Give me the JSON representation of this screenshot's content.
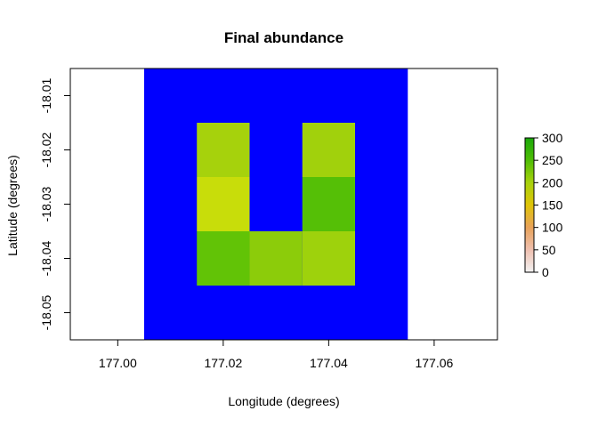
{
  "chart_data": {
    "type": "heatmap",
    "title": "Final abundance",
    "xlabel": "Longitude (degrees)",
    "ylabel": "Latitude (degrees)",
    "xlim": [
      176.991,
      177.072
    ],
    "ylim": [
      -18.055,
      -18.005
    ],
    "xticks": [
      177.0,
      177.02,
      177.04,
      177.06
    ],
    "xtick_labels": [
      "177.00",
      "177.02",
      "177.04",
      "177.06"
    ],
    "yticks": [
      -18.01,
      -18.02,
      -18.03,
      -18.04,
      -18.05
    ],
    "ytick_labels": [
      "-18.01",
      "-18.02",
      "-18.03",
      "-18.04",
      "-18.05"
    ],
    "background_region": {
      "x": [
        177.005,
        177.055
      ],
      "y": [
        -18.055,
        -18.005
      ],
      "color": "#0000ff"
    },
    "cell_size": 0.01,
    "cells": [
      {
        "x": 177.02,
        "y": -18.02,
        "value": 205,
        "color": "#a6d20c"
      },
      {
        "x": 177.04,
        "y": -18.02,
        "value": 200,
        "color": "#a1d10c"
      },
      {
        "x": 177.02,
        "y": -18.03,
        "value": 170,
        "color": "#c8dd0a"
      },
      {
        "x": 177.04,
        "y": -18.03,
        "value": 250,
        "color": "#55bf06"
      },
      {
        "x": 177.02,
        "y": -18.04,
        "value": 240,
        "color": "#62c306"
      },
      {
        "x": 177.03,
        "y": -18.04,
        "value": 215,
        "color": "#8ccc0a"
      },
      {
        "x": 177.04,
        "y": -18.04,
        "value": 205,
        "color": "#9ed20c"
      }
    ],
    "legend": {
      "placement": "right",
      "min": 0,
      "max": 300,
      "ticks": [
        0,
        50,
        100,
        150,
        200,
        250,
        300
      ],
      "tick_labels": [
        "0",
        "50",
        "100",
        "150",
        "200",
        "250",
        "300"
      ],
      "gradient_stops": [
        {
          "value": 0,
          "color": "#f2f2f2"
        },
        {
          "value": 50,
          "color": "#efc0b0"
        },
        {
          "value": 100,
          "color": "#e8a25a"
        },
        {
          "value": 150,
          "color": "#dfc408"
        },
        {
          "value": 200,
          "color": "#a8d20c"
        },
        {
          "value": 250,
          "color": "#4fbd06"
        },
        {
          "value": 300,
          "color": "#1aa80a"
        }
      ]
    }
  }
}
